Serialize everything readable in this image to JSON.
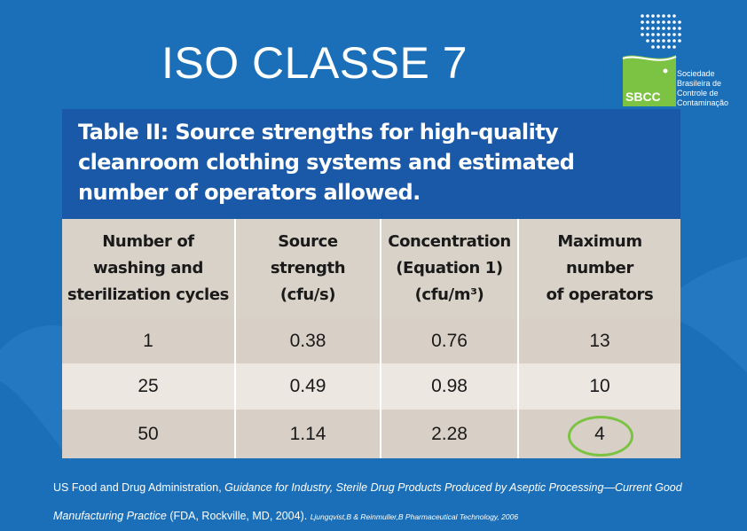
{
  "slide": {
    "title": "ISO CLASSE 7"
  },
  "logo": {
    "abbr": "SBCC",
    "org_name": "Sociedade\nBrasileira de\nControle de\nContaminação",
    "accent_green": "#7cc243",
    "accent_blue": "#1b6fb8"
  },
  "table": {
    "caption": "Table II: Source strengths for high-quality cleanroom clothing systems and estimated number of operators allowed.",
    "headers": [
      "Number of\nwashing and\nsterilization cycles",
      "Source\nstrength\n(cfu/s)",
      "Concentration\n(Equation 1)\n(cfu/m³)",
      "Maximum\nnumber\nof operators"
    ],
    "rows": [
      [
        "1",
        "0.38",
        "0.76",
        "13"
      ],
      [
        "25",
        "0.49",
        "0.98",
        "10"
      ],
      [
        "50",
        "1.14",
        "2.28",
        "4"
      ]
    ],
    "highlight_color": "#7cc243"
  },
  "source": {
    "part1": "US Food and Drug Administration, ",
    "italic1": "Guidance for Industry, Sterile Drug Products Produced by Aseptic Processing—Current Good Manufacturing Practice",
    "part2": " (FDA, Rockville, MD, 2004). ",
    "small": "Ljungqvist,B & Reinmuller,B Pharmaceutical Technology, 2006"
  }
}
